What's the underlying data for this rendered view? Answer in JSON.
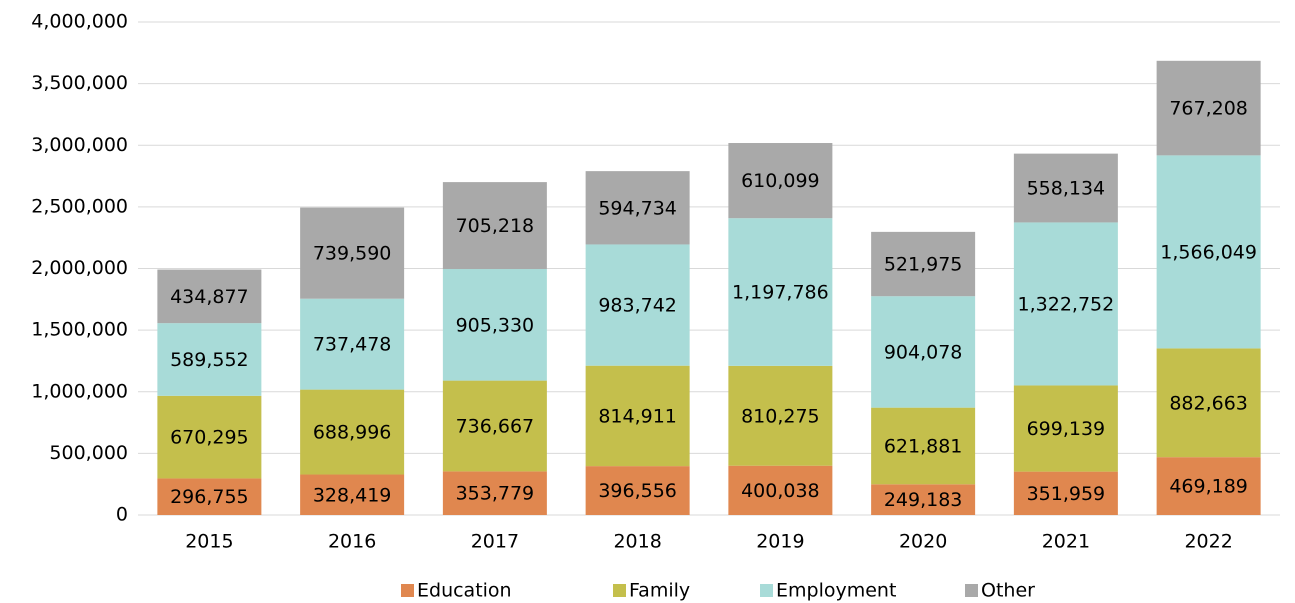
{
  "chart_data": {
    "type": "stacked_bar",
    "categories": [
      "2015",
      "2016",
      "2017",
      "2018",
      "2019",
      "2020",
      "2021",
      "2022"
    ],
    "series": [
      {
        "name": "Education",
        "color": "#e0874f",
        "values": [
          296755,
          328419,
          353779,
          396556,
          400038,
          249183,
          351959,
          469189
        ],
        "value_labels": [
          "296,755",
          "328,419",
          "353,779",
          "396,556",
          "400,038",
          "249,183",
          "351,959",
          "469,189"
        ]
      },
      {
        "name": "Family",
        "color": "#c4bf4c",
        "values": [
          670295,
          688996,
          736667,
          814911,
          810275,
          621881,
          699139,
          882663
        ],
        "value_labels": [
          "670,295",
          "688,996",
          "736,667",
          "814,911",
          "810,275",
          "621,881",
          "699,139",
          "882,663"
        ]
      },
      {
        "name": "Employment",
        "color": "#a8dbd8",
        "values": [
          589552,
          737478,
          905330,
          983742,
          1197786,
          904078,
          1322752,
          1566049
        ],
        "value_labels": [
          "589,552",
          "737,478",
          "905,330",
          "983,742",
          "1,197,786",
          "904,078",
          "1,322,752",
          "1,566,049"
        ]
      },
      {
        "name": "Other",
        "color": "#a9a9a9",
        "values": [
          434877,
          739590,
          705218,
          594734,
          610099,
          521975,
          558134,
          767208
        ],
        "value_labels": [
          "434,877",
          "739,590",
          "705,218",
          "594,734",
          "610,099",
          "521,975",
          "558,134",
          "767,208"
        ]
      }
    ],
    "ylim": [
      0,
      4000000
    ],
    "yticks": [
      0,
      {
        "value": 500000,
        "label": "500,000"
      },
      {
        "value": 1000000,
        "label": "1,000,000"
      },
      {
        "value": 1500000,
        "label": "1,500,000"
      },
      {
        "value": 2000000,
        "label": "2,000,000"
      },
      {
        "value": 2500000,
        "label": "2,500,000"
      },
      {
        "value": 3000000,
        "label": "3,000,000"
      },
      {
        "value": 3500000,
        "label": "3,500,000"
      },
      {
        "value": 4000000,
        "label": "4,000,000"
      }
    ],
    "grid": true,
    "legend": "bottom"
  }
}
